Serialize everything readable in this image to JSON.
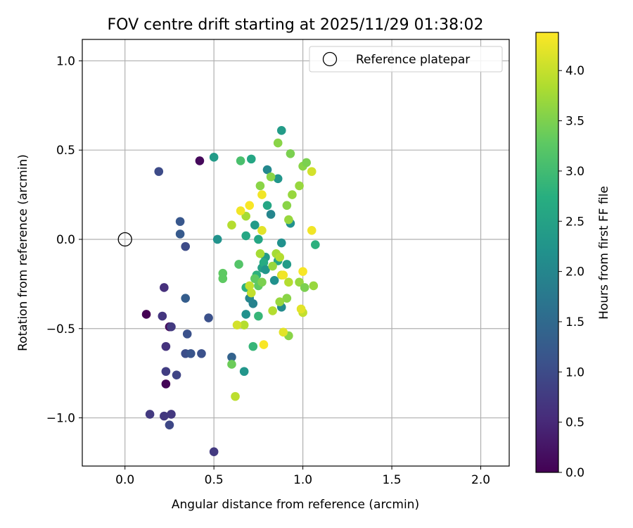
{
  "chart_data": {
    "type": "scatter",
    "title": "FOV centre drift starting at 2025/11/29 01:38:02",
    "xlabel": "Angular distance from reference (arcmin)",
    "ylabel": "Rotation from reference (arcmin)",
    "xlim": [
      -0.24,
      2.16
    ],
    "ylim": [
      -1.27,
      1.12
    ],
    "xticks": [
      0.0,
      0.5,
      1.0,
      1.5,
      2.0
    ],
    "xtick_labels": [
      "0.0",
      "0.5",
      "1.0",
      "1.5",
      "2.0"
    ],
    "yticks": [
      -1.0,
      -0.5,
      0.0,
      0.5,
      1.0
    ],
    "ytick_labels": [
      "−1.0",
      "−0.5",
      "0.0",
      "0.5",
      "1.0"
    ],
    "grid": true,
    "legend": {
      "position": "top-right",
      "entries": [
        "Reference platepar"
      ]
    },
    "reference_point": {
      "x": 0.0,
      "y": 0.0,
      "label": "Reference platepar"
    },
    "colorbar": {
      "label": "Hours from first FF file",
      "colormap": "viridis",
      "range": [
        0.0,
        4.38
      ],
      "ticks": [
        0.0,
        0.5,
        1.0,
        1.5,
        2.0,
        2.5,
        3.0,
        3.5,
        4.0
      ],
      "tick_labels": [
        "0.0",
        "0.5",
        "1.0",
        "1.5",
        "2.0",
        "2.5",
        "3.0",
        "3.5",
        "4.0"
      ]
    },
    "points": [
      {
        "x": 0.12,
        "y": -0.42,
        "c": 0.0
      },
      {
        "x": 0.23,
        "y": -0.81,
        "c": 0.05
      },
      {
        "x": 0.42,
        "y": 0.44,
        "c": 0.1
      },
      {
        "x": 0.25,
        "y": -0.49,
        "c": 0.15
      },
      {
        "x": 0.22,
        "y": -0.27,
        "c": 0.6
      },
      {
        "x": 0.21,
        "y": -0.43,
        "c": 0.7
      },
      {
        "x": 0.23,
        "y": -0.6,
        "c": 0.65
      },
      {
        "x": 0.26,
        "y": -0.49,
        "c": 0.75
      },
      {
        "x": 0.23,
        "y": -0.74,
        "c": 0.8
      },
      {
        "x": 0.29,
        "y": -0.76,
        "c": 0.9
      },
      {
        "x": 0.14,
        "y": -0.98,
        "c": 0.75
      },
      {
        "x": 0.22,
        "y": -0.99,
        "c": 0.72
      },
      {
        "x": 0.26,
        "y": -0.98,
        "c": 0.72
      },
      {
        "x": 0.25,
        "y": -1.04,
        "c": 0.95
      },
      {
        "x": 0.5,
        "y": -1.19,
        "c": 0.75
      },
      {
        "x": 0.19,
        "y": 0.38,
        "c": 1.0
      },
      {
        "x": 0.34,
        "y": -0.04,
        "c": 1.0
      },
      {
        "x": 0.31,
        "y": 0.1,
        "c": 1.2
      },
      {
        "x": 0.31,
        "y": 0.03,
        "c": 1.25
      },
      {
        "x": 0.34,
        "y": -0.33,
        "c": 1.3
      },
      {
        "x": 0.35,
        "y": -0.53,
        "c": 1.1
      },
      {
        "x": 0.34,
        "y": -0.64,
        "c": 1.05
      },
      {
        "x": 0.37,
        "y": -0.64,
        "c": 1.15
      },
      {
        "x": 0.43,
        "y": -0.64,
        "c": 1.1
      },
      {
        "x": 0.47,
        "y": -0.44,
        "c": 1.1
      },
      {
        "x": 0.6,
        "y": -0.66,
        "c": 1.4
      },
      {
        "x": 0.52,
        "y": 0.0,
        "c": 2.25
      },
      {
        "x": 0.5,
        "y": 0.46,
        "c": 2.4
      },
      {
        "x": 0.67,
        "y": -0.74,
        "c": 2.3
      },
      {
        "x": 0.68,
        "y": -0.42,
        "c": 2.2
      },
      {
        "x": 0.7,
        "y": -0.33,
        "c": 2.0
      },
      {
        "x": 0.72,
        "y": -0.36,
        "c": 1.95
      },
      {
        "x": 0.73,
        "y": 0.08,
        "c": 2.4
      },
      {
        "x": 0.75,
        "y": 0.0,
        "c": 2.6
      },
      {
        "x": 0.68,
        "y": 0.02,
        "c": 2.6
      },
      {
        "x": 0.71,
        "y": 0.45,
        "c": 2.6
      },
      {
        "x": 0.8,
        "y": 0.39,
        "c": 2.05
      },
      {
        "x": 0.86,
        "y": 0.34,
        "c": 2.3
      },
      {
        "x": 0.88,
        "y": 0.61,
        "c": 2.4
      },
      {
        "x": 0.8,
        "y": 0.19,
        "c": 2.6
      },
      {
        "x": 0.82,
        "y": 0.14,
        "c": 2.0
      },
      {
        "x": 0.77,
        "y": -0.16,
        "c": 2.5
      },
      {
        "x": 0.79,
        "y": -0.1,
        "c": 2.4
      },
      {
        "x": 0.78,
        "y": -0.13,
        "c": 2.7
      },
      {
        "x": 0.74,
        "y": -0.2,
        "c": 2.8
      },
      {
        "x": 0.79,
        "y": -0.17,
        "c": 2.3
      },
      {
        "x": 0.86,
        "y": -0.12,
        "c": 2.6
      },
      {
        "x": 0.88,
        "y": -0.02,
        "c": 2.2
      },
      {
        "x": 0.91,
        "y": -0.14,
        "c": 2.4
      },
      {
        "x": 0.84,
        "y": -0.23,
        "c": 2.2
      },
      {
        "x": 0.88,
        "y": -0.38,
        "c": 2.1
      },
      {
        "x": 0.93,
        "y": 0.09,
        "c": 2.2
      },
      {
        "x": 1.07,
        "y": -0.03,
        "c": 2.8
      },
      {
        "x": 0.68,
        "y": -0.27,
        "c": 2.8
      },
      {
        "x": 0.75,
        "y": -0.43,
        "c": 2.9
      },
      {
        "x": 0.72,
        "y": -0.6,
        "c": 2.9
      },
      {
        "x": 0.65,
        "y": 0.44,
        "c": 3.1
      },
      {
        "x": 0.55,
        "y": -0.19,
        "c": 3.3
      },
      {
        "x": 0.55,
        "y": -0.22,
        "c": 3.3
      },
      {
        "x": 0.64,
        "y": -0.14,
        "c": 3.2
      },
      {
        "x": 0.6,
        "y": -0.7,
        "c": 3.4
      },
      {
        "x": 0.76,
        "y": 0.3,
        "c": 3.6
      },
      {
        "x": 0.82,
        "y": 0.35,
        "c": 3.6
      },
      {
        "x": 0.86,
        "y": 0.54,
        "c": 3.6
      },
      {
        "x": 0.93,
        "y": 0.48,
        "c": 3.5
      },
      {
        "x": 1.0,
        "y": 0.41,
        "c": 3.6
      },
      {
        "x": 1.02,
        "y": 0.43,
        "c": 3.5
      },
      {
        "x": 0.94,
        "y": 0.25,
        "c": 3.7
      },
      {
        "x": 0.98,
        "y": 0.3,
        "c": 3.7
      },
      {
        "x": 0.91,
        "y": 0.19,
        "c": 3.6
      },
      {
        "x": 0.92,
        "y": 0.11,
        "c": 3.7
      },
      {
        "x": 0.73,
        "y": -0.22,
        "c": 3.3
      },
      {
        "x": 0.75,
        "y": -0.26,
        "c": 3.3
      },
      {
        "x": 0.77,
        "y": -0.24,
        "c": 3.5
      },
      {
        "x": 0.76,
        "y": -0.08,
        "c": 3.8
      },
      {
        "x": 0.85,
        "y": -0.08,
        "c": 3.8
      },
      {
        "x": 0.83,
        "y": -0.15,
        "c": 3.7
      },
      {
        "x": 0.87,
        "y": -0.1,
        "c": 3.9
      },
      {
        "x": 0.92,
        "y": -0.24,
        "c": 3.9
      },
      {
        "x": 0.98,
        "y": -0.24,
        "c": 3.7
      },
      {
        "x": 1.01,
        "y": -0.27,
        "c": 3.5
      },
      {
        "x": 1.06,
        "y": -0.26,
        "c": 3.7
      },
      {
        "x": 0.91,
        "y": -0.33,
        "c": 3.6
      },
      {
        "x": 0.87,
        "y": -0.35,
        "c": 3.7
      },
      {
        "x": 0.83,
        "y": -0.4,
        "c": 3.9
      },
      {
        "x": 0.92,
        "y": -0.54,
        "c": 3.6
      },
      {
        "x": 0.88,
        "y": -0.2,
        "c": 4.1
      },
      {
        "x": 1.0,
        "y": -0.41,
        "c": 4.0
      },
      {
        "x": 0.7,
        "y": -0.26,
        "c": 4.0
      },
      {
        "x": 0.71,
        "y": -0.3,
        "c": 4.0
      },
      {
        "x": 0.67,
        "y": -0.48,
        "c": 3.9
      },
      {
        "x": 0.63,
        "y": -0.48,
        "c": 4.1
      },
      {
        "x": 0.62,
        "y": -0.88,
        "c": 3.95
      },
      {
        "x": 0.6,
        "y": 0.08,
        "c": 3.9
      },
      {
        "x": 0.68,
        "y": 0.13,
        "c": 3.8
      },
      {
        "x": 0.77,
        "y": 0.05,
        "c": 4.2
      },
      {
        "x": 0.65,
        "y": 0.16,
        "c": 4.3
      },
      {
        "x": 0.7,
        "y": 0.19,
        "c": 4.35
      },
      {
        "x": 0.77,
        "y": 0.25,
        "c": 4.3
      },
      {
        "x": 1.05,
        "y": 0.38,
        "c": 4.1
      },
      {
        "x": 1.05,
        "y": 0.05,
        "c": 4.3
      },
      {
        "x": 0.89,
        "y": -0.2,
        "c": 4.3
      },
      {
        "x": 1.0,
        "y": -0.18,
        "c": 4.35
      },
      {
        "x": 0.99,
        "y": -0.39,
        "c": 4.2
      },
      {
        "x": 0.89,
        "y": -0.52,
        "c": 4.2
      },
      {
        "x": 0.78,
        "y": -0.59,
        "c": 4.35
      }
    ]
  }
}
